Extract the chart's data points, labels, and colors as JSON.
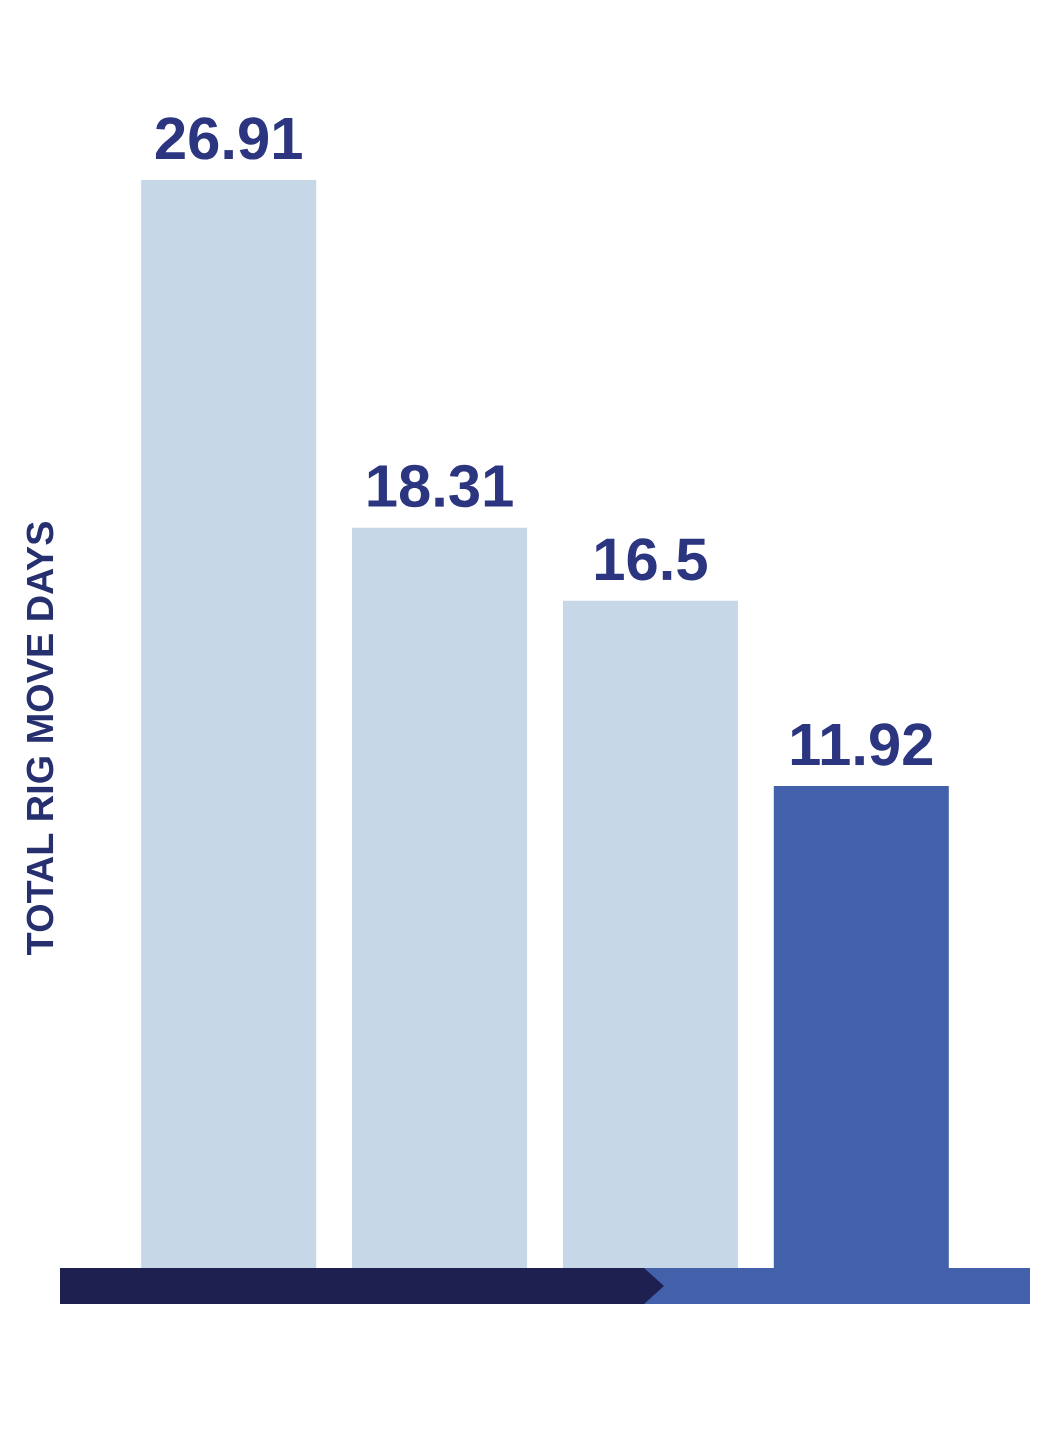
{
  "chart_data": {
    "type": "bar",
    "ylabel": "TOTAL RIG MOVE DAYS",
    "categories": [
      null,
      null,
      null,
      null
    ],
    "values": [
      26.91,
      18.31,
      16.5,
      11.92
    ],
    "colors": [
      "#c6d7e8",
      "#c6d7e8",
      "#c6d7e8",
      "#4361ab"
    ],
    "data_labels": true
  }
}
